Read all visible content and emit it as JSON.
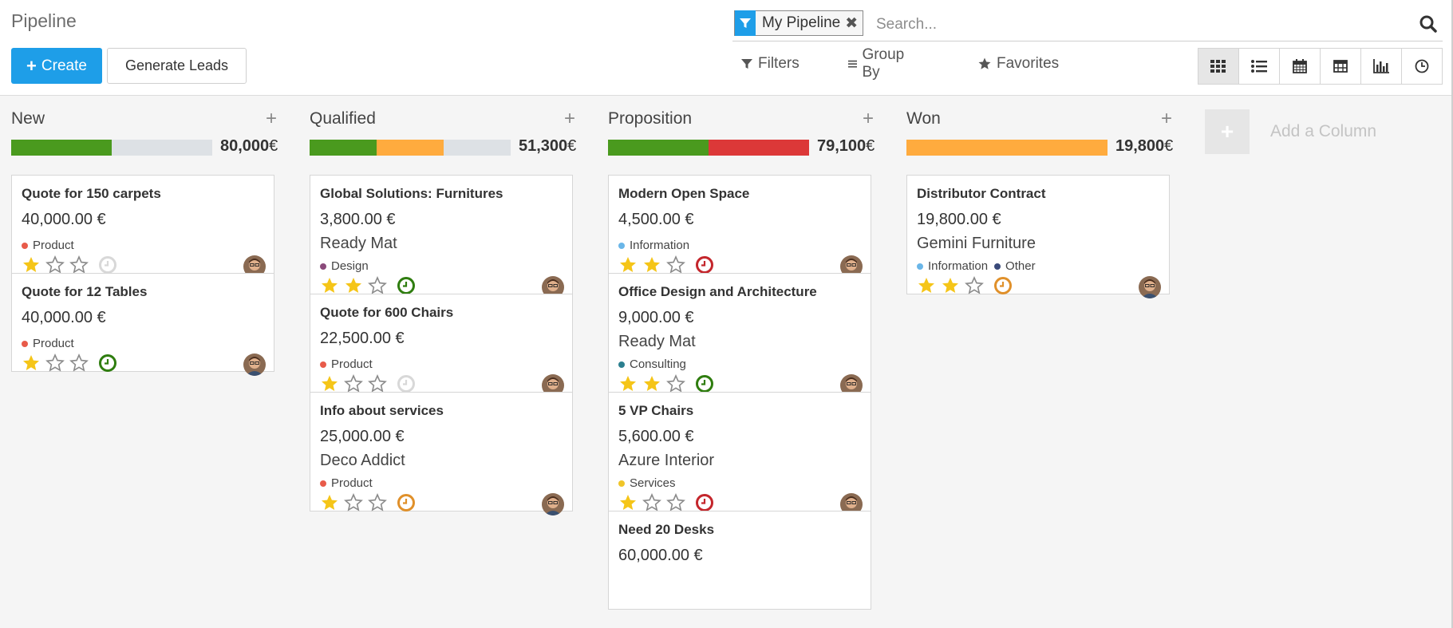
{
  "header": {
    "title": "Pipeline",
    "create_label": "Create",
    "generate_label": "Generate Leads"
  },
  "search": {
    "facet_label": "My Pipeline",
    "placeholder": "Search..."
  },
  "filterbar": {
    "filters": "Filters",
    "group_by": "Group By",
    "favorites": "Favorites"
  },
  "views": [
    "kanban-icon",
    "list-icon",
    "calendar-icon",
    "pivot-icon",
    "graph-icon",
    "activity-icon"
  ],
  "colors": {
    "primary": "#1e9ee8",
    "green": "#4a9a1e",
    "orange": "#ffab3e",
    "red": "#dc3838",
    "grey": "#dde1e5",
    "star": "#f5c518"
  },
  "columns": [
    {
      "title": "New",
      "total": "80,000",
      "currency": "€",
      "progress": [
        {
          "color": "#4a9a1e",
          "fraction": 0.5
        }
      ],
      "cards": [
        {
          "name": "Quote for 150 carpets",
          "revenue": "40,000.00 €",
          "partner": "",
          "tags": [
            {
              "label": "Product",
              "color": "#e85b4a"
            }
          ],
          "stars": 1,
          "activity": "#d8d8d8"
        },
        {
          "name": "Quote for 12 Tables",
          "revenue": "40,000.00 €",
          "partner": "",
          "tags": [
            {
              "label": "Product",
              "color": "#e85b4a"
            }
          ],
          "stars": 1,
          "activity": "#2f7d0f"
        }
      ]
    },
    {
      "title": "Qualified",
      "total": "51,300",
      "currency": "€",
      "progress": [
        {
          "color": "#4a9a1e",
          "fraction": 0.333
        },
        {
          "color": "#ffab3e",
          "fraction": 0.333
        }
      ],
      "cards": [
        {
          "name": "Global Solutions: Furnitures",
          "revenue": "3,800.00 €",
          "partner": "Ready Mat",
          "tags": [
            {
              "label": "Design",
              "color": "#8a4a7a"
            }
          ],
          "stars": 2,
          "activity": "#2f7d0f"
        },
        {
          "name": "Quote for 600 Chairs",
          "revenue": "22,500.00 €",
          "partner": "",
          "tags": [
            {
              "label": "Product",
              "color": "#e85b4a"
            }
          ],
          "stars": 1,
          "activity": "#d8d8d8"
        },
        {
          "name": "Info about services",
          "revenue": "25,000.00 €",
          "partner": "Deco Addict",
          "tags": [
            {
              "label": "Product",
              "color": "#e85b4a"
            }
          ],
          "stars": 1,
          "activity": "#e0902a"
        }
      ]
    },
    {
      "title": "Proposition",
      "total": "79,100",
      "currency": "€",
      "progress": [
        {
          "color": "#4a9a1e",
          "fraction": 0.5
        },
        {
          "color": "#dc3838",
          "fraction": 0.5
        }
      ],
      "cards": [
        {
          "name": "Modern Open Space",
          "revenue": "4,500.00 €",
          "partner": "",
          "tags": [
            {
              "label": "Information",
              "color": "#6ab6e8"
            }
          ],
          "stars": 2,
          "activity": "#c4262c"
        },
        {
          "name": "Office Design and Architecture",
          "revenue": "9,000.00 €",
          "partner": "Ready Mat",
          "tags": [
            {
              "label": "Consulting",
              "color": "#2c7f8f"
            }
          ],
          "stars": 2,
          "activity": "#2f7d0f"
        },
        {
          "name": "5 VP Chairs",
          "revenue": "5,600.00 €",
          "partner": "Azure Interior",
          "tags": [
            {
              "label": "Services",
              "color": "#f0c528"
            }
          ],
          "stars": 1,
          "activity": "#c4262c"
        },
        {
          "name": "Need 20 Desks",
          "revenue": "60,000.00 €",
          "partner": "",
          "tags": [],
          "stars": 0,
          "activity": ""
        }
      ]
    },
    {
      "title": "Won",
      "total": "19,800",
      "currency": "€",
      "progress": [
        {
          "color": "#ffab3e",
          "fraction": 1.0
        }
      ],
      "cards": [
        {
          "name": "Distributor Contract",
          "revenue": "19,800.00 €",
          "partner": "Gemini Furniture",
          "tags": [
            {
              "label": "Information",
              "color": "#6ab6e8"
            },
            {
              "label": "Other",
              "color": "#3a4a7a"
            }
          ],
          "stars": 2,
          "activity": "#e0902a"
        }
      ]
    }
  ],
  "add_column_label": "Add a Column"
}
